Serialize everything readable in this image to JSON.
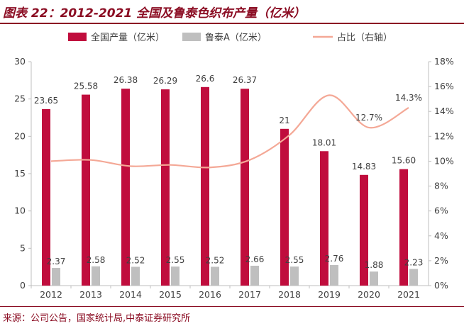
{
  "header": {
    "title": "图表 22：2012-2021 全国及鲁泰色织布产量（亿米）"
  },
  "footer": {
    "source": "来源：公司公告，国家统计局,中泰证券研究所"
  },
  "chart_data": {
    "type": "bar",
    "title": "图表 22：2012-2021 全国及鲁泰色织布产量（亿米）",
    "categories": [
      "2012",
      "2013",
      "2014",
      "2015",
      "2016",
      "2017",
      "2018",
      "2019",
      "2020",
      "2021"
    ],
    "series": [
      {
        "name": "全国产量（亿米）",
        "type": "bar",
        "axis": "left",
        "color": "#c00d3d",
        "values": [
          23.65,
          25.58,
          26.38,
          26.29,
          26.6,
          26.37,
          21,
          18.01,
          14.83,
          15.6
        ],
        "labels": [
          "23.65",
          "25.58",
          "26.38",
          "26.29",
          "26.6",
          "26.37",
          "21",
          "18.01",
          "14.83",
          "15.60"
        ]
      },
      {
        "name": "鲁泰A（亿米）",
        "type": "bar",
        "axis": "left",
        "color": "#bfbfbf",
        "values": [
          2.37,
          2.58,
          2.52,
          2.55,
          2.52,
          2.66,
          2.55,
          2.76,
          1.88,
          2.23
        ],
        "labels": [
          "2.37",
          "2.58",
          "2.52",
          "2.55",
          "2.52",
          "2.66",
          "2.55",
          "2.76",
          "1.88",
          "2.23"
        ]
      },
      {
        "name": "占比（右轴）",
        "type": "line",
        "axis": "right",
        "color": "#f4a896",
        "values": [
          10.0,
          10.1,
          9.6,
          9.7,
          9.5,
          10.1,
          12.1,
          15.3,
          12.7,
          14.3
        ],
        "labels": [
          "",
          "",
          "",
          "",
          "",
          "",
          "",
          "",
          "12.7%",
          "14.3%"
        ]
      }
    ],
    "y_left": {
      "min": 0,
      "max": 30,
      "ticks": [
        "0",
        "5",
        "10",
        "15",
        "20",
        "25",
        "30"
      ]
    },
    "y_right": {
      "min": 0,
      "max": 18,
      "ticks": [
        "0%",
        "2%",
        "4%",
        "6%",
        "8%",
        "10%",
        "12%",
        "14%",
        "16%",
        "18%"
      ]
    },
    "legend": {
      "position": "top",
      "items": [
        "全国产量（亿米）",
        "鲁泰A（亿米）",
        "占比（右轴）"
      ]
    },
    "grid": false
  }
}
